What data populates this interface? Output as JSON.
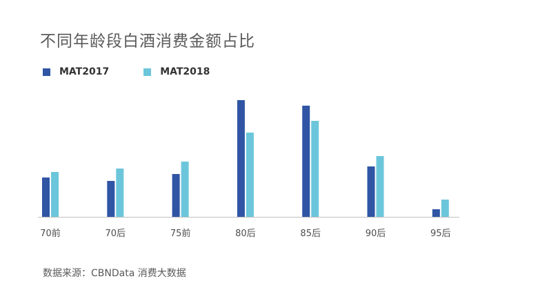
{
  "chart_data": {
    "type": "bar",
    "title": "不同年龄段白酒消费金额占比",
    "xlabel": "",
    "ylabel": "",
    "categories": [
      "70前",
      "70后",
      "75前",
      "80后",
      "85后",
      "90后",
      "95后"
    ],
    "series": [
      {
        "name": "MAT2017",
        "values": [
          57,
          52,
          62,
          169,
          161,
          73,
          11
        ],
        "color": "#2f55a4"
      },
      {
        "name": "MAT2018",
        "values": [
          65,
          70,
          80,
          122,
          139,
          88,
          25
        ],
        "color": "#6cc6db"
      }
    ],
    "ylim": [
      0,
      180
    ],
    "grid": false,
    "legend": "top-left",
    "source": "数据来源：CBNData 消费大数据"
  }
}
